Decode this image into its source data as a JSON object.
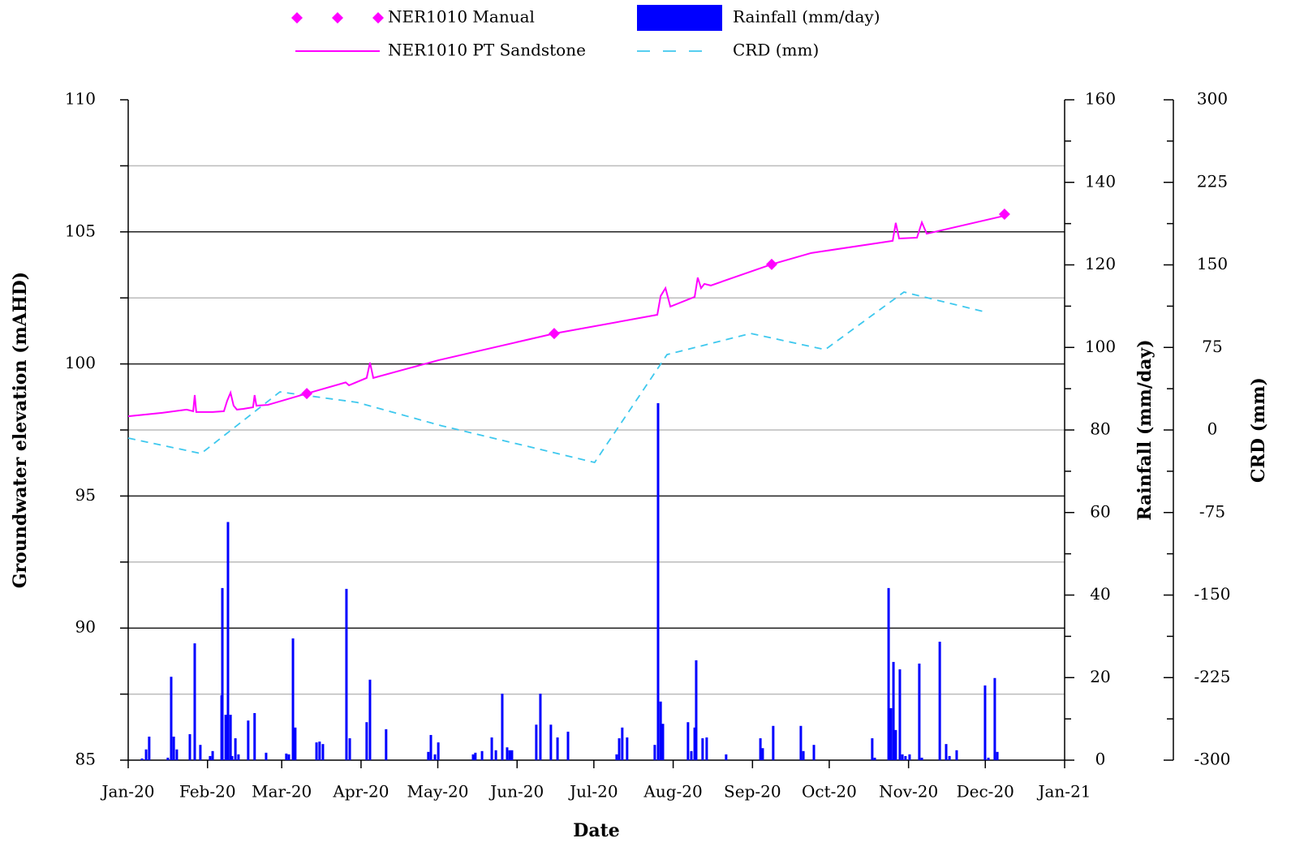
{
  "chart_data": {
    "type": "combo",
    "xlabel": "Date",
    "ylabel": "Groundwater elevation (mAHD)",
    "y2label": "Rainfall (mm/day)",
    "y3label": "CRD (mm)",
    "xlim": [
      0,
      366
    ],
    "xticks": [
      {
        "value": 0,
        "label": "Jan-20"
      },
      {
        "value": 31,
        "label": "Feb-20"
      },
      {
        "value": 60,
        "label": "Mar-20"
      },
      {
        "value": 91,
        "label": "Apr-20"
      },
      {
        "value": 121,
        "label": "May-20"
      },
      {
        "value": 152,
        "label": "Jun-20"
      },
      {
        "value": 182,
        "label": "Jul-20"
      },
      {
        "value": 213,
        "label": "Aug-20"
      },
      {
        "value": 244,
        "label": "Sep-20"
      },
      {
        "value": 274,
        "label": "Oct-20"
      },
      {
        "value": 305,
        "label": "Nov-20"
      },
      {
        "value": 335,
        "label": "Dec-20"
      },
      {
        "value": 366,
        "label": "Jan-21"
      }
    ],
    "ylim": [
      85,
      110
    ],
    "yticks": [
      85,
      90,
      95,
      100,
      105,
      110
    ],
    "yminor": [
      87.5,
      92.5,
      97.5,
      102.5,
      107.5
    ],
    "y2lim": [
      0,
      160
    ],
    "y2ticks": [
      0,
      20,
      40,
      60,
      80,
      100,
      120,
      140,
      160
    ],
    "y2minor": [
      10,
      30,
      50,
      70,
      90,
      110,
      130,
      150
    ],
    "y3lim": [
      -300,
      300
    ],
    "y3ticks": [
      -300,
      -225,
      -150,
      -75,
      0,
      75,
      150,
      225,
      300
    ],
    "y3minor": [
      -262.5,
      -187.5,
      -112.5,
      -37.5,
      37.5,
      112.5,
      187.5,
      262.5
    ],
    "grid": true,
    "legend": "top",
    "series": [
      {
        "name": "NER1010 Manual",
        "type": "scatter",
        "color": "#ff00ff",
        "axis": "y",
        "x": [
          69.8,
          166.5,
          251.5,
          342.5
        ],
        "values": [
          98.88,
          101.15,
          103.77,
          105.67
        ]
      },
      {
        "name": "NER1010 PT Sandstone",
        "type": "line",
        "color": "#ff00ff",
        "axis": "y",
        "x": [
          0,
          13.3,
          22.8,
          25.4,
          26.0,
          26.6,
          33.0,
          37.4,
          38.7,
          40.0,
          41.2,
          42.5,
          45.0,
          48.8,
          49.4,
          50.1,
          54.6,
          69.8,
          85.0,
          86.3,
          93.2,
          94.5,
          95.8,
          121.2,
          166.5,
          206.8,
          208.1,
          210.0,
          211.9,
          221.4,
          222.6,
          223.9,
          225.2,
          227.7,
          251.5,
          267.0,
          298.8,
          300.0,
          301.3,
          308.3,
          310.2,
          312.1,
          342.5
        ],
        "values": [
          98.02,
          98.15,
          98.27,
          98.21,
          98.82,
          98.18,
          98.18,
          98.21,
          98.61,
          98.91,
          98.42,
          98.27,
          98.3,
          98.36,
          98.82,
          98.42,
          98.45,
          98.88,
          99.3,
          99.19,
          99.47,
          100.05,
          99.47,
          100.14,
          101.15,
          101.86,
          102.57,
          102.87,
          102.17,
          102.54,
          103.27,
          102.87,
          103.03,
          102.97,
          103.77,
          104.2,
          104.66,
          105.34,
          104.75,
          104.78,
          105.36,
          104.93,
          105.61
        ]
      },
      {
        "name": "Rainfall (mm/day)",
        "type": "bar",
        "color": "#0000ff",
        "axis": "y2",
        "x": [
          5.4,
          7.0,
          8.2,
          15.5,
          16.8,
          17.8,
          19.0,
          24.1,
          26.0,
          28.2,
          32.0,
          33.0,
          36.5,
          36.8,
          38.1,
          39.0,
          40.0,
          40.6,
          41.9,
          43.1,
          46.9,
          49.4,
          53.9,
          61.8,
          62.8,
          64.4,
          65.3,
          73.6,
          74.8,
          76.1,
          85.3,
          86.6,
          93.2,
          94.5,
          100.8,
          117.3,
          118.3,
          119.9,
          121.2,
          134.8,
          135.7,
          138.3,
          142.1,
          143.7,
          146.2,
          148.1,
          149.1,
          150.0,
          159.5,
          161.1,
          165.2,
          167.8,
          171.9,
          190.9,
          191.9,
          193.1,
          195.0,
          205.8,
          207.1,
          208.1,
          209.0,
          218.8,
          220.1,
          221.4,
          222.0,
          224.5,
          226.1,
          233.7,
          247.1,
          248.0,
          252.1,
          262.9,
          263.9,
          268.0,
          290.8,
          291.8,
          297.2,
          298.1,
          299.1,
          300.0,
          301.6,
          302.6,
          303.8,
          305.4,
          309.2,
          310.2,
          317.2,
          319.7,
          321.0,
          323.8,
          334.9,
          336.2,
          338.7,
          339.7
        ],
        "values": [
          0.4,
          2.6,
          5.7,
          0.6,
          20.2,
          5.7,
          2.6,
          6.3,
          28.3,
          3.7,
          1,
          2.2,
          15.7,
          41.7,
          11,
          57.7,
          11,
          1,
          5.3,
          1.4,
          9.6,
          11.4,
          1.8,
          1.6,
          1.4,
          29.5,
          7.9,
          4.3,
          4.5,
          3.9,
          41.5,
          5.3,
          9.2,
          19.5,
          7.5,
          2,
          6.1,
          1.4,
          4.3,
          1.4,
          1.8,
          2.2,
          5.5,
          2.4,
          16.1,
          3.1,
          2.4,
          2.4,
          8.6,
          16.1,
          8.6,
          5.5,
          6.9,
          1.4,
          5.3,
          7.9,
          5.5,
          3.7,
          86.5,
          14.2,
          8.8,
          9.2,
          2.2,
          7.9,
          24.2,
          5.3,
          5.5,
          1.4,
          5.3,
          2.9,
          8.3,
          8.3,
          2.2,
          3.7,
          5.3,
          0.6,
          41.7,
          12.6,
          23.8,
          7.3,
          22,
          1.4,
          1,
          1.4,
          23.4,
          0.6,
          28.7,
          3.9,
          1,
          2.4,
          18.1,
          0.6,
          19.9,
          2
        ]
      },
      {
        "name": "CRD (mm)",
        "type": "dashed",
        "color": "#3ec8ee",
        "axis": "y3",
        "x": [
          0,
          28.5,
          59.3,
          89.4,
          122.7,
          182.3,
          210.6,
          243.3,
          272.4,
          303.2,
          334.3
        ],
        "values": [
          -7.4,
          -21.4,
          34.6,
          25.1,
          3.7,
          -29.5,
          68.5,
          87.7,
          73.0,
          125.3,
          107.6
        ]
      }
    ]
  }
}
